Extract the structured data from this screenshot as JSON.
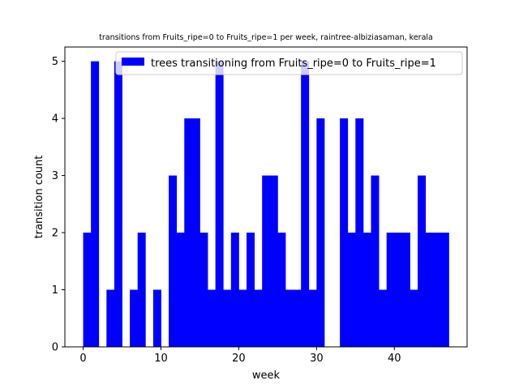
{
  "chart_data": {
    "type": "bar",
    "title": "transitions from Fruits_ripe=0 to Fruits_ripe=1 per week, raintree-albiziasaman, kerala",
    "xlabel": "week",
    "ylabel": "transition count",
    "xlim": [
      -2.35,
      49.35
    ],
    "ylim": [
      0,
      5.25
    ],
    "xticks": [
      0,
      10,
      20,
      30,
      40
    ],
    "xtick_labels": [
      "0",
      "10",
      "20",
      "30",
      "40"
    ],
    "yticks": [
      0,
      1,
      2,
      3,
      4,
      5
    ],
    "ytick_labels": [
      "0",
      "1",
      "2",
      "3",
      "4",
      "5"
    ],
    "bar_color": "#0000ff",
    "legend": {
      "position": "top-right",
      "label": "trees transitioning from Fruits_ripe=0 to Fruits_ripe=1"
    },
    "grid": false,
    "bin_width": 1,
    "x": [
      0,
      1,
      2,
      3,
      4,
      5,
      6,
      7,
      8,
      9,
      10,
      11,
      12,
      13,
      14,
      15,
      16,
      17,
      18,
      19,
      20,
      21,
      22,
      23,
      24,
      25,
      26,
      27,
      28,
      29,
      30,
      31,
      32,
      33,
      34,
      35,
      36,
      37,
      38,
      39,
      40,
      41,
      42,
      43,
      44,
      45,
      46
    ],
    "values": [
      2,
      5,
      0,
      1,
      5,
      0,
      1,
      2,
      0,
      1,
      0,
      3,
      2,
      4,
      4,
      2,
      1,
      5,
      1,
      2,
      1,
      2,
      1,
      3,
      3,
      2,
      1,
      1,
      5,
      1,
      4,
      0,
      0,
      4,
      2,
      4,
      2,
      3,
      1,
      2,
      2,
      2,
      1,
      3,
      2,
      2,
      2
    ]
  }
}
